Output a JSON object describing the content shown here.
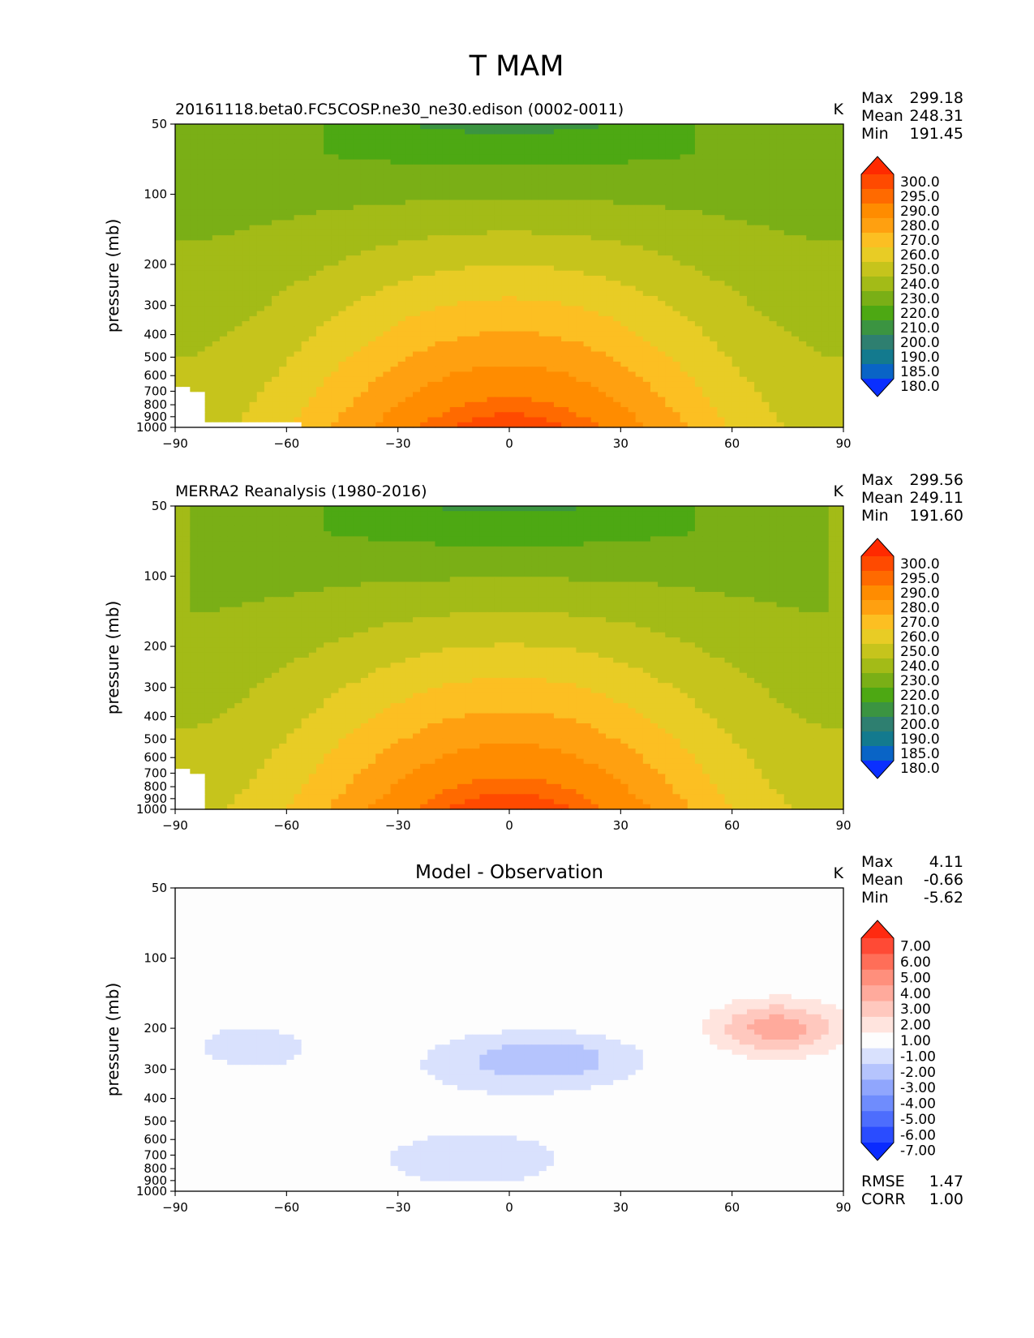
{
  "figure": {
    "title": "T MAM"
  },
  "chart_data": [
    {
      "type": "heatmap",
      "left_title": "20161118.beta0.FC5COSP.ne30_ne30.edison (0002-0011)",
      "center_title": "",
      "units": "K",
      "ylabel": "pressure (mb)",
      "xlabel": "",
      "x_ticks": [
        "−90",
        "−60",
        "−30",
        "0",
        "30",
        "60",
        "90"
      ],
      "y_ticks": [
        "50",
        "100",
        "200",
        "300",
        "400",
        "500",
        "600",
        "700",
        "800",
        "900",
        "1000"
      ],
      "xlim": [
        -90,
        90
      ],
      "ylim": [
        1000,
        50
      ],
      "stats": [
        {
          "label": "Max",
          "value": "299.18"
        },
        {
          "label": "Mean",
          "value": "248.31"
        },
        {
          "label": "Min",
          "value": "191.45"
        }
      ],
      "colorbar": {
        "levels": [
          "300.0",
          "295.0",
          "290.0",
          "280.0",
          "270.0",
          "260.0",
          "250.0",
          "240.0",
          "230.0",
          "220.0",
          "210.0",
          "200.0",
          "190.0",
          "185.0",
          "180.0"
        ],
        "colors": [
          "#ff2a00",
          "#ff4a00",
          "#ff6a00",
          "#ff8c00",
          "#ffa010",
          "#fcbf22",
          "#e8cc25",
          "#c6c41c",
          "#a3bb17",
          "#7aaf16",
          "#4da813",
          "#3b9441",
          "#2e7f70",
          "#137a8e",
          "#0964c6",
          "#0a2fff"
        ]
      },
      "field": "model_temperature"
    },
    {
      "type": "heatmap",
      "left_title": "MERRA2 Reanalysis (1980-2016)",
      "center_title": "",
      "units": "K",
      "ylabel": "pressure (mb)",
      "xlabel": "",
      "x_ticks": [
        "−90",
        "−60",
        "−30",
        "0",
        "30",
        "60",
        "90"
      ],
      "y_ticks": [
        "50",
        "100",
        "200",
        "300",
        "400",
        "500",
        "600",
        "700",
        "800",
        "900",
        "1000"
      ],
      "xlim": [
        -90,
        90
      ],
      "ylim": [
        1000,
        50
      ],
      "stats": [
        {
          "label": "Max",
          "value": "299.56"
        },
        {
          "label": "Mean",
          "value": "249.11"
        },
        {
          "label": "Min",
          "value": "191.60"
        }
      ],
      "colorbar": {
        "levels": [
          "300.0",
          "295.0",
          "290.0",
          "280.0",
          "270.0",
          "260.0",
          "250.0",
          "240.0",
          "230.0",
          "220.0",
          "210.0",
          "200.0",
          "190.0",
          "185.0",
          "180.0"
        ],
        "colors": [
          "#ff2a00",
          "#ff4a00",
          "#ff6a00",
          "#ff8c00",
          "#ffa010",
          "#fcbf22",
          "#e8cc25",
          "#c6c41c",
          "#a3bb17",
          "#7aaf16",
          "#4da813",
          "#3b9441",
          "#2e7f70",
          "#137a8e",
          "#0964c6",
          "#0a2fff"
        ]
      },
      "field": "obs_temperature"
    },
    {
      "type": "heatmap",
      "left_title": "",
      "center_title": "Model - Observation",
      "units": "K",
      "ylabel": "pressure (mb)",
      "xlabel": "",
      "x_ticks": [
        "−90",
        "−60",
        "−30",
        "0",
        "30",
        "60",
        "90"
      ],
      "y_ticks": [
        "50",
        "100",
        "200",
        "300",
        "400",
        "500",
        "600",
        "700",
        "800",
        "900",
        "1000"
      ],
      "xlim": [
        -90,
        90
      ],
      "ylim": [
        1000,
        50
      ],
      "stats": [
        {
          "label": "Max",
          "value": "4.11"
        },
        {
          "label": "Mean",
          "value": "-0.66"
        },
        {
          "label": "Min",
          "value": "-5.62"
        }
      ],
      "colorbar": {
        "levels": [
          "7.00",
          "6.00",
          "5.00",
          "4.00",
          "3.00",
          "2.00",
          "1.00",
          "-1.00",
          "-2.00",
          "-3.00",
          "-4.00",
          "-5.00",
          "-6.00",
          "-7.00"
        ],
        "colors": [
          "#ff2a10",
          "#ff4a35",
          "#ff6e58",
          "#ff8f7c",
          "#ffaa9c",
          "#ffc8be",
          "#ffe4de",
          "#fdfdfd",
          "#d9e1fd",
          "#b5c4fd",
          "#90a6fd",
          "#6f8cfd",
          "#4d6dfd",
          "#2a4cff",
          "#0a2bff"
        ]
      },
      "extra_stats": [
        {
          "label": "RMSE",
          "value": "1.47"
        },
        {
          "label": "CORR",
          "value": "1.00"
        }
      ],
      "field": "difference"
    }
  ]
}
